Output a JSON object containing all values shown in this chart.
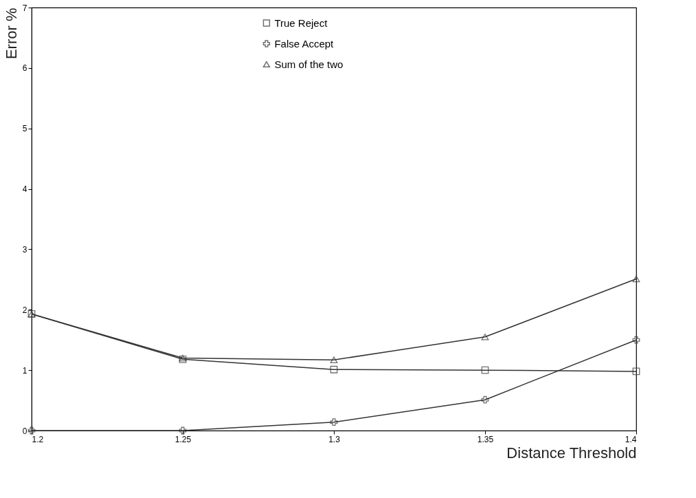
{
  "chart_data": {
    "type": "line",
    "xlabel": "Distance Threshold",
    "ylabel": "Error %",
    "x": [
      1.2,
      1.25,
      1.3,
      1.35,
      1.4
    ],
    "xlim": [
      1.2,
      1.4
    ],
    "xticks": [
      1.2,
      1.25,
      1.3,
      1.35,
      1.4
    ],
    "ylim": [
      0,
      7
    ],
    "yticks": [
      0,
      1,
      2,
      3,
      4,
      5,
      6,
      7
    ],
    "grid": false,
    "legend": "top",
    "series": [
      {
        "name": "True Reject",
        "color": "#333333",
        "marker": "square",
        "values": [
          1.93,
          1.18,
          1.01,
          1.0,
          0.98
        ]
      },
      {
        "name": "False Accept",
        "color": "#333333",
        "marker": "cross",
        "values": [
          0,
          0,
          0.14,
          0.51,
          1.5
        ]
      },
      {
        "name": "Sum of the two",
        "color": "#333333",
        "marker": "triangle",
        "values": [
          1.93,
          1.2,
          1.17,
          1.55,
          2.51
        ]
      }
    ]
  }
}
